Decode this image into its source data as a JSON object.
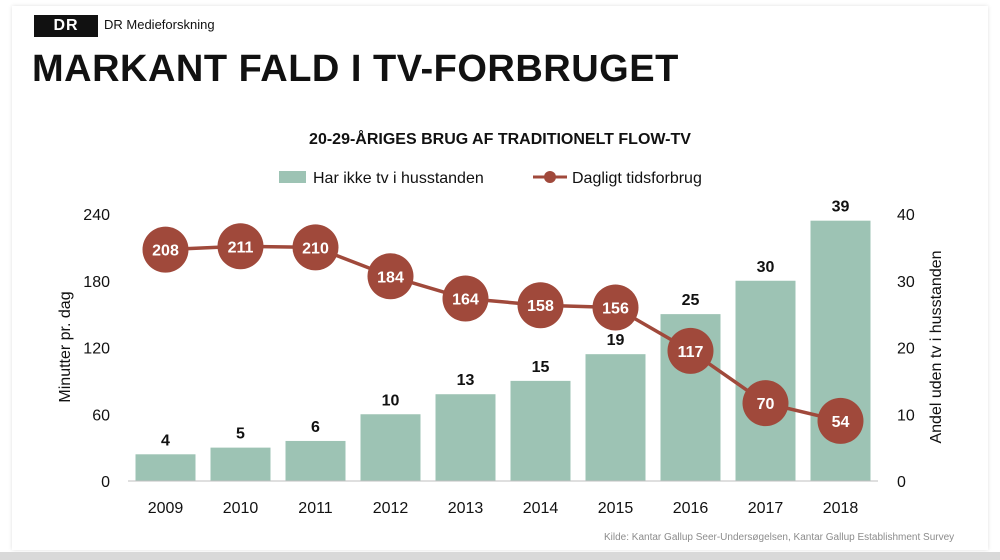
{
  "header": {
    "logo_text": "DR",
    "org_name": "DR Medieforskning",
    "headline": "MARKANT FALD I TV-FORBRUGET"
  },
  "source_note": "Kilde: Kantar Gallup Seer-Undersøgelsen, Kantar Gallup Establishment Survey",
  "colors": {
    "bar": "#9dc3b4",
    "line": "#a0493b",
    "text": "#111111"
  },
  "chart_data": {
    "type": "bar+line",
    "title": "20-29-ÅRIGES BRUG AF TRADITIONELT FLOW-TV",
    "categories": [
      "2009",
      "2010",
      "2011",
      "2012",
      "2013",
      "2014",
      "2015",
      "2016",
      "2017",
      "2018"
    ],
    "series": [
      {
        "name": "Har ikke tv i husstanden",
        "type": "bar",
        "axis": "right",
        "values": [
          4,
          5,
          6,
          10,
          13,
          15,
          19,
          25,
          30,
          39
        ]
      },
      {
        "name": "Dagligt tidsforbrug",
        "type": "line",
        "axis": "left",
        "values": [
          208,
          211,
          210,
          184,
          164,
          158,
          156,
          117,
          70,
          54
        ]
      }
    ],
    "ylabel_left": "Minutter pr. dag",
    "ylabel_right": "Andel uden tv i husstanden",
    "ylim_left": [
      0,
      240
    ],
    "yticks_left": [
      "0",
      "60",
      "120",
      "180",
      "240"
    ],
    "ylim_right": [
      0,
      40
    ],
    "yticks_right": [
      "0",
      "10",
      "20",
      "30",
      "40"
    ],
    "legend_position": "top-center",
    "grid": false
  }
}
